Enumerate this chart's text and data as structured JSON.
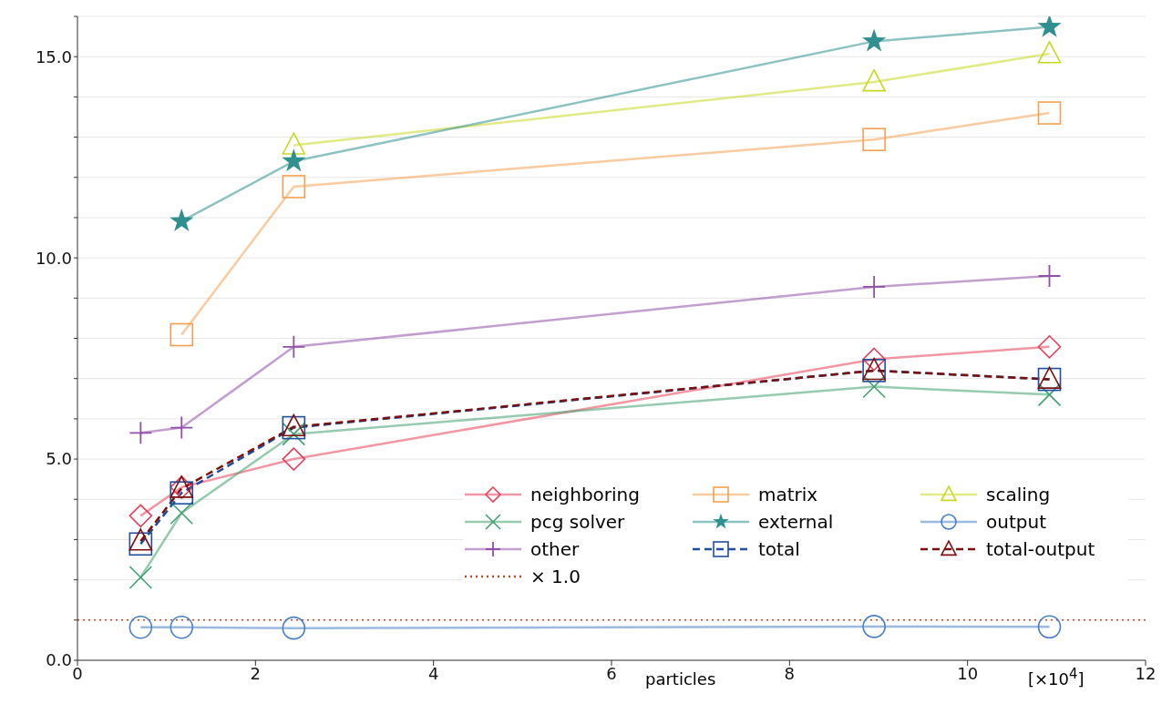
{
  "chart_data": {
    "type": "line",
    "xlabel": "particles",
    "annotations": [
      "[×10$^{4}$]"
    ],
    "x": [
      0.71,
      1.17,
      2.43,
      8.95,
      10.92
    ],
    "xlim": [
      0,
      12
    ],
    "xticks": [
      0,
      2,
      4,
      6,
      8,
      10,
      12
    ],
    "ylim": [
      0,
      16
    ],
    "yticks": [
      {
        "value": 0,
        "label": "0.0"
      },
      {
        "value": 1,
        "label": null
      },
      {
        "value": 2,
        "label": null
      },
      {
        "value": 3,
        "label": null
      },
      {
        "value": 4,
        "label": null
      },
      {
        "value": 5,
        "label": "5.0"
      },
      {
        "value": 6,
        "label": null
      },
      {
        "value": 7,
        "label": null
      },
      {
        "value": 8,
        "label": null
      },
      {
        "value": 9,
        "label": null
      },
      {
        "value": 10,
        "label": "10.0"
      },
      {
        "value": 11,
        "label": null
      },
      {
        "value": 12,
        "label": null
      },
      {
        "value": 13,
        "label": null
      },
      {
        "value": 14,
        "label": null
      },
      {
        "value": 15,
        "label": "15.0"
      },
      {
        "value": 16,
        "label": null
      }
    ],
    "grid": "y",
    "legend": "bottom right",
    "series": [
      {
        "name": "neighboring",
        "color": "#e8405a",
        "marker": "diamond",
        "line_style": "solid",
        "values": [
          3.59,
          4.3,
          5.0,
          7.48,
          7.79
        ]
      },
      {
        "name": "matrix",
        "color": "#f5a050",
        "marker": "square",
        "line_style": "solid",
        "values": [
          null,
          8.09,
          11.77,
          12.94,
          13.6
        ]
      },
      {
        "name": "scaling",
        "color": "#c8d820",
        "marker": "triangle",
        "line_style": "solid",
        "values": [
          null,
          null,
          12.8,
          14.37,
          15.07
        ]
      },
      {
        "name": "pcg solver",
        "color": "#40a070",
        "marker": "cross",
        "line_style": "solid",
        "values": [
          2.06,
          3.66,
          5.62,
          6.8,
          6.6
        ]
      },
      {
        "name": "external",
        "color": "#309090",
        "marker": "star",
        "line_style": "solid",
        "values": [
          null,
          10.91,
          12.4,
          15.38,
          15.74
        ]
      },
      {
        "name": "output",
        "color": "#4a80c8",
        "marker": "circle",
        "line_style": "solid",
        "values": [
          0.82,
          0.82,
          0.8,
          0.84,
          0.83
        ]
      },
      {
        "name": "other",
        "color": "#9050a8",
        "marker": "plus",
        "line_style": "solid",
        "values": [
          5.65,
          5.78,
          7.79,
          9.28,
          9.55
        ]
      },
      {
        "name": "total",
        "color": "#1f4e9c",
        "marker": "square",
        "line_style": "dashed",
        "values": [
          2.89,
          4.16,
          5.78,
          7.2,
          6.98
        ]
      },
      {
        "name": "total-output",
        "color": "#7b1010",
        "marker": "triangle",
        "line_style": "dashed",
        "values": [
          2.96,
          4.27,
          5.8,
          7.2,
          6.98
        ]
      }
    ],
    "ref_lines": [
      {
        "axis": "y",
        "value": 1.0,
        "label": "× 1.0",
        "color": "#b05030",
        "line_style": "dotted"
      }
    ]
  }
}
